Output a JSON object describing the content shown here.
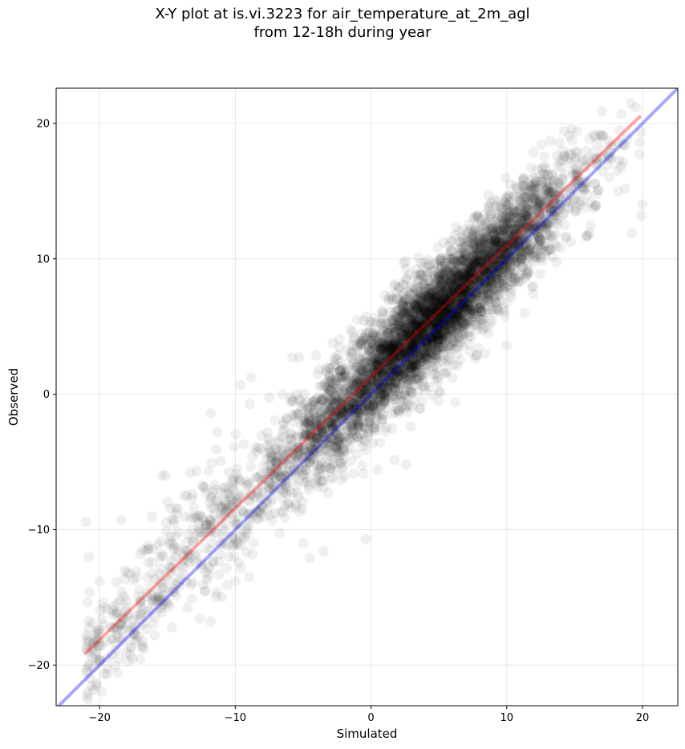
{
  "chart_data": {
    "type": "scatter",
    "title_lines": [
      "X-Y plot at is.vi.3223 for air_temperature_at_2m_agl",
      "from 12-18h during year"
    ],
    "xlabel": "Simulated",
    "ylabel": "Observed",
    "xlim": [
      -23.2,
      22.6
    ],
    "ylim": [
      -23.0,
      22.6
    ],
    "xticks": [
      -20,
      -10,
      0,
      10,
      20
    ],
    "yticks": [
      -20,
      -10,
      0,
      10,
      20
    ],
    "xtick_labels": [
      "−20",
      "−10",
      "0",
      "10",
      "20"
    ],
    "ytick_labels": [
      "−20",
      "−10",
      "0",
      "10",
      "20"
    ],
    "grid": true,
    "point_color": "#000000",
    "point_alpha": 0.06,
    "point_cloud": {
      "x_range": [
        -21,
        20
      ],
      "approx_slope": 0.97,
      "approx_intercept": 1.1,
      "spread_sd": 1.9
    },
    "lines": [
      {
        "role": "one-to-one",
        "color": "#0000ff",
        "alpha": 0.35,
        "x": [
          -23.2,
          22.6
        ],
        "y": [
          -23.2,
          22.6
        ]
      },
      {
        "role": "regression-fit",
        "color": "#ff0000",
        "alpha": 0.35,
        "x": [
          -21.0,
          19.8
        ],
        "y": [
          -19.1,
          20.5
        ]
      }
    ],
    "sample_points": [
      [
        -21.0,
        -9.4
      ],
      [
        -20.8,
        -12.0
      ],
      [
        -20.0,
        -13.8
      ],
      [
        -18.4,
        -9.3
      ],
      [
        -17.0,
        -11.8
      ],
      [
        -15.4,
        -6.0
      ],
      [
        -14.4,
        -8.4
      ],
      [
        -13.3,
        -5.8
      ],
      [
        -12.2,
        -14.5
      ],
      [
        -11.8,
        -1.4
      ],
      [
        -11.3,
        -2.8
      ],
      [
        -10.0,
        -13.8
      ],
      [
        -9.6,
        0.7
      ],
      [
        -5.8,
        2.7
      ],
      [
        -5.0,
        -11.0
      ],
      [
        -4.5,
        -12.1
      ],
      [
        -3.5,
        -11.6
      ],
      [
        -1.4,
        4.6
      ],
      [
        -0.4,
        -10.7
      ],
      [
        1.0,
        7.3
      ],
      [
        2.6,
        -5.2
      ],
      [
        3.5,
        10.1
      ],
      [
        6.2,
        -0.6
      ],
      [
        8.4,
        3.0
      ],
      [
        9.9,
        16.0
      ],
      [
        10.0,
        3.6
      ],
      [
        11.3,
        6.0
      ],
      [
        13.2,
        18.7
      ],
      [
        15.2,
        19.4
      ],
      [
        15.8,
        13.8
      ],
      [
        16.1,
        11.9
      ],
      [
        18.4,
        16.8
      ],
      [
        19.2,
        11.9
      ],
      [
        19.9,
        13.2
      ],
      [
        20.0,
        14.0
      ],
      [
        19.9,
        19.4
      ],
      [
        19.8,
        18.6
      ]
    ]
  }
}
